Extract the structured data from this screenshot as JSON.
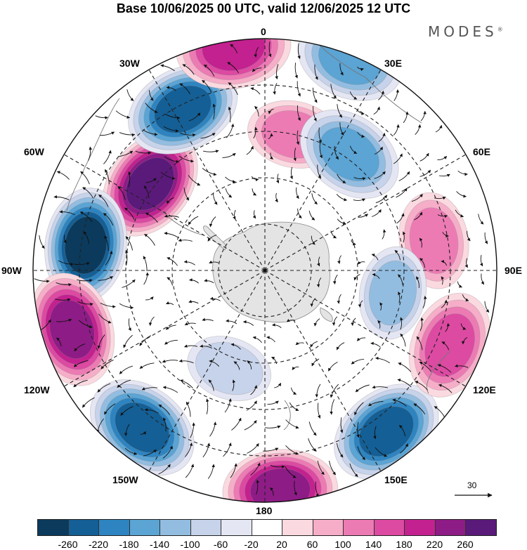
{
  "title": "Base 10/06/2025 00 UTC, valid 12/06/2025 12 UTC",
  "brand": "MODES",
  "brand_mark": "®",
  "longitude_labels": {
    "lon_0": "0",
    "lon_30e": "30E",
    "lon_60e": "60E",
    "lon_90e": "90E",
    "lon_120e": "120E",
    "lon_150e": "150E",
    "lon_180": "180",
    "lon_150w": "150W",
    "lon_120w": "120W",
    "lon_90w": "90W",
    "lon_60w": "60W",
    "lon_30w": "30W"
  },
  "reference_vector": {
    "label": "30"
  },
  "colorbar": {
    "colors": [
      "#0b3a5c",
      "#145f95",
      "#2e84c0",
      "#5ba4d4",
      "#93bde0",
      "#c6d3ea",
      "#e5e6f3",
      "#ffffff",
      "#fbd9e0",
      "#f6aec8",
      "#ec7bb4",
      "#dc4aa2",
      "#c3218f",
      "#8e1c86",
      "#5a1a7a"
    ],
    "ticks": [
      "-260",
      "-220",
      "-180",
      "-140",
      "-100",
      "-60",
      "-20",
      "20",
      "60",
      "100",
      "140",
      "180",
      "220",
      "260"
    ]
  },
  "anomaly_centers": [
    {
      "lon": -53,
      "lat_ring": 0.62,
      "value": 240
    },
    {
      "lon": -82,
      "lat_ring": 0.78,
      "value": -240
    },
    {
      "lon": -27,
      "lat_ring": 0.78,
      "value": -210
    },
    {
      "lon": -8,
      "lat_ring": 0.97,
      "value": 160
    },
    {
      "lon": 22,
      "lat_ring": 0.98,
      "value": -120
    },
    {
      "lon": 12,
      "lat_ring": 0.6,
      "value": 80
    },
    {
      "lon": 36,
      "lat_ring": 0.62,
      "value": -120
    },
    {
      "lon": 80,
      "lat_ring": 0.74,
      "value": 90
    },
    {
      "lon": 100,
      "lat_ring": 0.56,
      "value": -80
    },
    {
      "lon": -107,
      "lat_ring": 0.87,
      "value": 200
    },
    {
      "lon": -142,
      "lat_ring": 0.86,
      "value": -220
    },
    {
      "lon": -160,
      "lat_ring": 0.45,
      "value": -60
    },
    {
      "lon": 176,
      "lat_ring": 0.95,
      "value": 210
    },
    {
      "lon": 143,
      "lat_ring": 0.87,
      "value": -230
    },
    {
      "lon": 112,
      "lat_ring": 0.86,
      "value": 120
    }
  ]
}
